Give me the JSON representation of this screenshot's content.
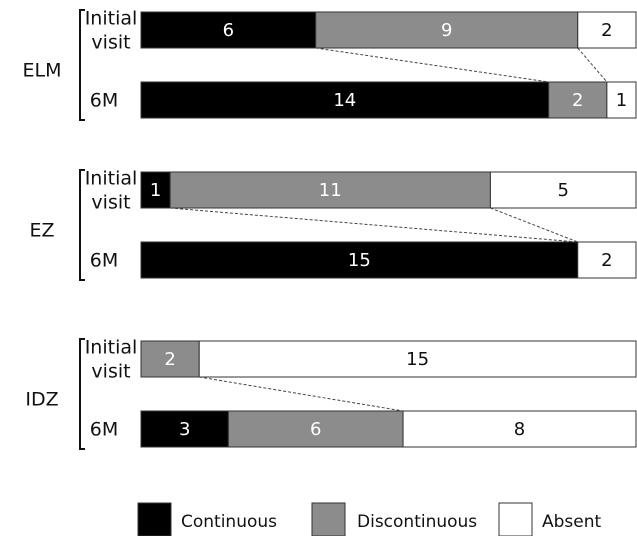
{
  "chart_data": {
    "type": "bar",
    "orientation": "horizontal",
    "stacked": true,
    "normalized": true,
    "groups": [
      {
        "name": "ELM",
        "rows": [
          {
            "label_line1": "Initial",
            "label_line2": "visit",
            "values": [
              6,
              9,
              2
            ]
          },
          {
            "label_line1": "6M",
            "label_line2": "",
            "values": [
              14,
              2,
              1
            ]
          }
        ]
      },
      {
        "name": "EZ",
        "rows": [
          {
            "label_line1": "Initial",
            "label_line2": "visit",
            "values": [
              1,
              11,
              5
            ]
          },
          {
            "label_line1": "6M",
            "label_line2": "",
            "values": [
              15,
              0,
              2
            ]
          }
        ]
      },
      {
        "name": "IDZ",
        "rows": [
          {
            "label_line1": "Initial",
            "label_line2": "visit",
            "values": [
              0,
              2,
              15
            ]
          },
          {
            "label_line1": "6M",
            "label_line2": "",
            "values": [
              3,
              6,
              8
            ]
          }
        ]
      }
    ],
    "series": [
      {
        "name": "Continuous",
        "color": "#000000",
        "text_color": "#ffffff"
      },
      {
        "name": "Discontinuous",
        "color": "#8c8c8c",
        "text_color": "#ffffff"
      },
      {
        "name": "Absent",
        "color": "#ffffff",
        "text_color": "#111111"
      }
    ],
    "legend_position": "bottom",
    "grid": false,
    "connector_lines": "dashed"
  }
}
